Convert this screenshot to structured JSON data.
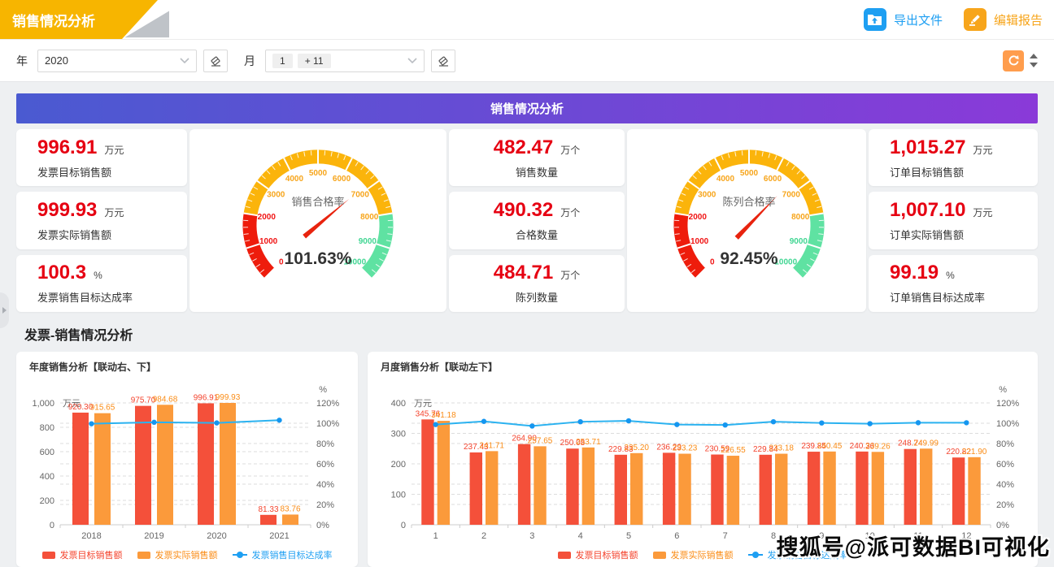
{
  "header": {
    "title": "销售情况分析",
    "actions": {
      "export": "导出文件",
      "edit": "编辑报告"
    }
  },
  "filters": {
    "year_label": "年",
    "year_value": "2020",
    "month_label": "月",
    "month_tags": [
      "1",
      "+ 11"
    ]
  },
  "banner_title": "销售情况分析",
  "kpi_cards": {
    "left": [
      {
        "value": "996.91",
        "unit": "万元",
        "label": "发票目标销售额"
      },
      {
        "value": "999.93",
        "unit": "万元",
        "label": "发票实际销售额"
      },
      {
        "value": "100.3",
        "unit": "%",
        "label": "发票销售目标达成率"
      }
    ],
    "middle": [
      {
        "value": "482.47",
        "unit": "万个",
        "label": "销售数量"
      },
      {
        "value": "490.32",
        "unit": "万个",
        "label": "合格数量"
      },
      {
        "value": "484.71",
        "unit": "万个",
        "label": "陈列数量"
      }
    ],
    "right": [
      {
        "value": "1,015.27",
        "unit": "万元",
        "label": "订单目标销售额"
      },
      {
        "value": "1,007.10",
        "unit": "万元",
        "label": "订单实际销售额"
      },
      {
        "value": "99.19",
        "unit": "%",
        "label": "订单销售目标达成率"
      }
    ]
  },
  "section_title": "发票-销售情况分析",
  "watermark": "搜狐号@派可数据BI可视化",
  "colors": {
    "ribbon_yellow": "#f7b500",
    "primary_blue": "#1e9ff2",
    "accent_orange": "#f7a51b",
    "kpi_red": "#e60012",
    "bar_red": "#f4503a",
    "bar_orange": "#fb9a3b",
    "line_blue": "#2bb2f0",
    "gauge_red": "#ee1c0c",
    "gauge_yellow": "#fbb40b",
    "gauge_green": "#5fe2a2",
    "banner_gradient": [
      "#4a5ad1",
      "#8a3ad8"
    ]
  },
  "chart_data": [
    {
      "type": "gauge",
      "title": "销售合格率",
      "value": 101.63,
      "value_display": "101.63%",
      "axis": {
        "min": 0,
        "max": 10000,
        "tick_step": 1000,
        "tick_labels": [
          "0",
          "1000",
          "2000",
          "3000",
          "4000",
          "5000",
          "6000",
          "7000",
          "8000",
          "9000",
          "10000"
        ],
        "segments": [
          {
            "from": 0,
            "to": 2000,
            "color": "#ee1c0c"
          },
          {
            "from": 2000,
            "to": 8000,
            "color": "#fbb40b"
          },
          {
            "from": 8000,
            "to": 10000,
            "color": "#5fe2a2"
          }
        ]
      }
    },
    {
      "type": "gauge",
      "title": "陈列合格率",
      "value": 92.45,
      "value_display": "92.45%",
      "axis": {
        "min": 0,
        "max": 10000,
        "tick_step": 1000,
        "tick_labels": [
          "0",
          "1000",
          "2000",
          "3000",
          "4000",
          "5000",
          "6000",
          "7000",
          "8000",
          "9000",
          "10000"
        ],
        "segments": [
          {
            "from": 0,
            "to": 2000,
            "color": "#ee1c0c"
          },
          {
            "from": 2000,
            "to": 8000,
            "color": "#fbb40b"
          },
          {
            "from": 8000,
            "to": 10000,
            "color": "#5fe2a2"
          }
        ]
      }
    },
    {
      "type": "bar",
      "title": "年度销售分析【联动右、下】",
      "categories": [
        "2018",
        "2019",
        "2020",
        "2021"
      ],
      "series": [
        {
          "name": "发票目标销售额",
          "type": "bar",
          "color": "#f4503a",
          "label_color": "#f4442e",
          "values": [
            920.3,
            975.7,
            996.91,
            81.33
          ]
        },
        {
          "name": "发票实际销售额",
          "type": "bar",
          "color": "#fb9a3b",
          "label_color": "#fa8c16",
          "values": [
            915.65,
            984.68,
            999.93,
            83.76
          ]
        },
        {
          "name": "发票销售目标达成率",
          "type": "line",
          "color": "#2bb2f0",
          "values": [
            99.49,
            100.92,
            100.3,
            102.99
          ]
        }
      ],
      "left_axis": {
        "unit": "万元",
        "min": 0,
        "max": 1000,
        "step": 200
      },
      "right_axis": {
        "unit": "%",
        "min": 0,
        "max": 120,
        "step": 20
      },
      "grid": true,
      "legend_position": "bottom"
    },
    {
      "type": "bar",
      "title": "月度销售分析【联动左下】",
      "categories": [
        "1",
        "2",
        "3",
        "4",
        "5",
        "6",
        "7",
        "8",
        "9",
        "10",
        "11",
        "12"
      ],
      "series": [
        {
          "name": "发票目标销售额",
          "type": "bar",
          "color": "#f4503a",
          "label_color": "#f4442e",
          "values": [
            345.76,
            237.43,
            264.9,
            250.08,
            229.83,
            236.29,
            230.59,
            229.84,
            239.85,
            240.36,
            248.74,
            220.82
          ]
        },
        {
          "name": "发票实际销售额",
          "type": "bar",
          "color": "#fb9a3b",
          "label_color": "#fa8c16",
          "values": [
            341.18,
            241.71,
            257.65,
            253.71,
            235.2,
            233.23,
            226.55,
            233.18,
            240.45,
            239.26,
            249.99,
            221.9
          ]
        },
        {
          "name": "发票销售目标达成率",
          "type": "line",
          "color": "#2bb2f0",
          "values": [
            98.68,
            101.8,
            97.26,
            101.45,
            102.34,
            98.71,
            98.25,
            101.45,
            100.25,
            99.54,
            100.5,
            100.49
          ]
        }
      ],
      "left_axis": {
        "unit": "万元",
        "min": 0,
        "max": 400,
        "step": 100
      },
      "right_axis": {
        "unit": "%",
        "min": 0,
        "max": 120,
        "step": 20
      },
      "grid": true,
      "legend_position": "bottom"
    }
  ]
}
